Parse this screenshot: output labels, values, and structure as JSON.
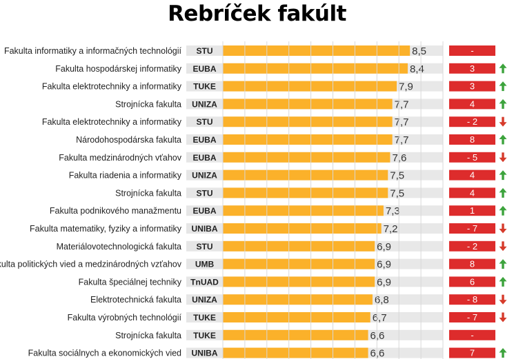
{
  "title": "Rebríček fakúlt",
  "chart_data": {
    "type": "bar",
    "orientation": "horizontal",
    "title": "Rebríček fakúlt",
    "xlim": [
      0,
      10
    ],
    "categories": [
      "Fakulta informatiky a informačných technológií",
      "Fakulta hospodárskej informatiky",
      "Fakulta elektrotechniky a informatiky",
      "Strojnícka fakulta",
      "Fakulta elektrotechniky a informatiky",
      "Národohospodárska fakulta",
      "Fakulta medzinárodných vťahov",
      "Fakulta riadenia a informatiky",
      "Strojnícka fakulta",
      "Fakulta podnikového manažmentu",
      "Fakulta matematiky, fyziky a informatiky",
      "Materiálovotechnologická fakulta",
      "Fakulta politických vied a medzinárodných vzťahov",
      "Fakulta špeciálnej techniky",
      "Elektrotechnická fakulta",
      "Fakulta výrobných technológií",
      "Strojnícka fakulta",
      "Fakulta sociálnych a ekonomických vied"
    ],
    "universities": [
      "STU",
      "EUBA",
      "TUKE",
      "UNIZA",
      "STU",
      "EUBA",
      "EUBA",
      "UNIZA",
      "STU",
      "EUBA",
      "UNIBA",
      "STU",
      "UMB",
      "TnUAD",
      "UNIZA",
      "TUKE",
      "TUKE",
      "UNIBA"
    ],
    "values": [
      8.5,
      8.4,
      7.9,
      7.7,
      7.7,
      7.7,
      7.6,
      7.5,
      7.5,
      7.3,
      7.2,
      6.9,
      6.9,
      6.9,
      6.8,
      6.7,
      6.6,
      6.6
    ],
    "value_labels": [
      "8,5",
      "8,4",
      "7,9",
      "7,7",
      "7,7",
      "7,7",
      "7,6",
      "7,5",
      "7,5",
      "7,3",
      "7,2",
      "6,9",
      "6,9",
      "6,9",
      "6,8",
      "6,7",
      "6,6",
      "6,6"
    ],
    "change_labels": [
      "-",
      "3",
      "3",
      "4",
      "- 2",
      "8",
      "- 5",
      "4",
      "4",
      "1",
      "- 7",
      "- 2",
      "8",
      "6",
      "- 8",
      "- 7",
      "-",
      "7"
    ],
    "change_direction": [
      "none",
      "up",
      "up",
      "up",
      "down",
      "up",
      "down",
      "up",
      "up",
      "up",
      "down",
      "down",
      "up",
      "up",
      "down",
      "down",
      "none",
      "up"
    ],
    "grid": true,
    "colors": {
      "bar": "#FBB12A",
      "track": "#E6E6E6",
      "badge": "#DD2C2C",
      "up_arrow": "#3CA33C",
      "down_arrow": "#D63A2A"
    }
  }
}
